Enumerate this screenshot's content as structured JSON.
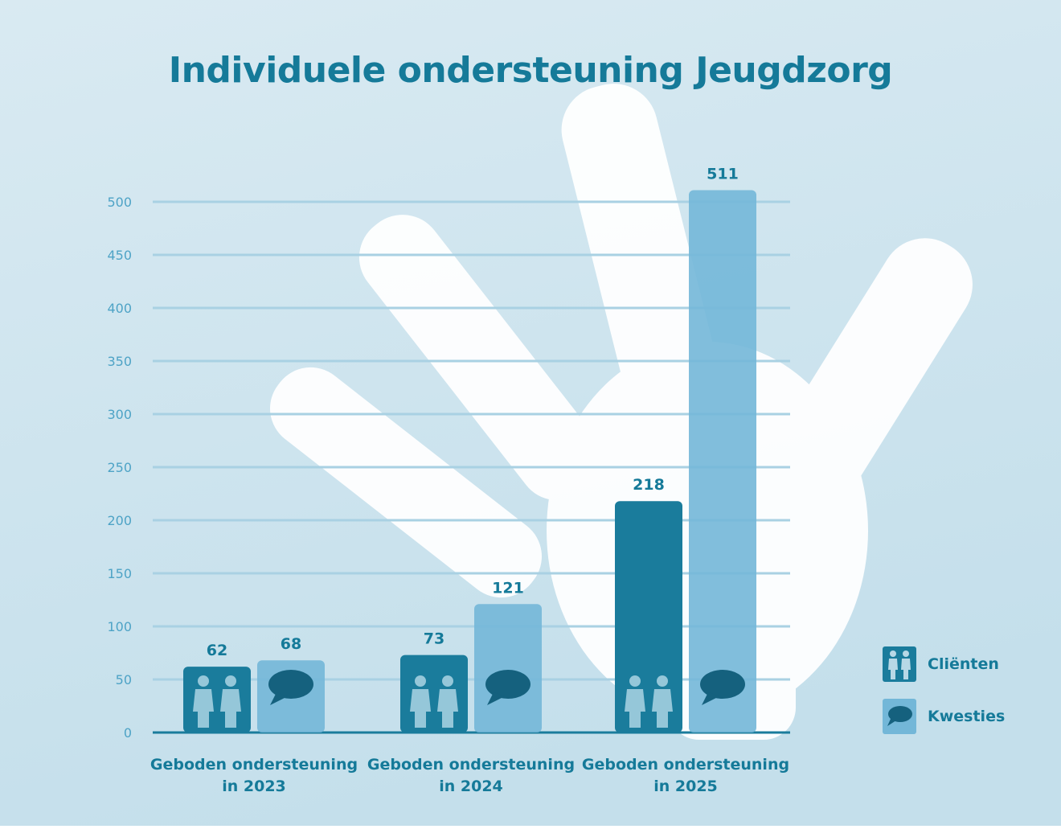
{
  "colors": {
    "background_top": "#d9eaf2",
    "background_bottom": "#c4dfeb",
    "title": "#157a99",
    "grid": "#a9d1e3",
    "ytick": "#4ea3c6",
    "clients": "#1a7c9c",
    "issues": "#73b7d8",
    "label": "#157a99",
    "hand": "#ffffff"
  },
  "chart_data": {
    "type": "bar",
    "title": "Individuele ondersteuning Jeugdzorg",
    "xlabel": "",
    "ylabel": "",
    "categories": [
      "Geboden ondersteuning in 2023",
      "Geboden ondersteuning in 2024",
      "Geboden ondersteuning in 2025"
    ],
    "category_lines": [
      [
        "Geboden ondersteuning",
        "in 2023"
      ],
      [
        "Geboden ondersteuning",
        "in 2024"
      ],
      [
        "Geboden ondersteuning",
        "in 2025"
      ]
    ],
    "series": [
      {
        "name": "Cliënten",
        "values": [
          62,
          73,
          218
        ],
        "color": "#1a7c9c",
        "icon": "people-icon"
      },
      {
        "name": "Kwesties",
        "values": [
          68,
          121,
          511
        ],
        "color": "#73b7d8",
        "icon": "speech-bubble-icon"
      }
    ],
    "ylim": [
      0,
      500
    ],
    "yticks": [
      0,
      50,
      100,
      150,
      200,
      250,
      300,
      350,
      400,
      450,
      500
    ],
    "grid": true,
    "legend_position": "bottom-right"
  }
}
